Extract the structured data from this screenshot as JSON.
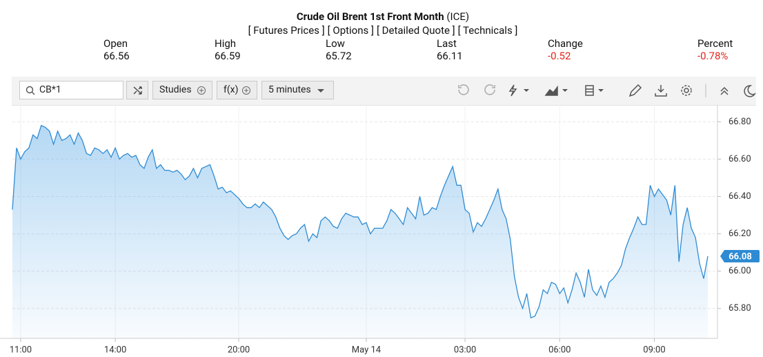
{
  "header": {
    "title": "Crude Oil Brent 1st Front Month",
    "exchange": "(ICE)",
    "links": [
      "[ Futures Prices ]",
      "[ Options ]",
      "[ Detailed Quote ]",
      "[ Technicals ]"
    ]
  },
  "quote": [
    {
      "label": "Open",
      "value": "66.56"
    },
    {
      "label": "High",
      "value": "66.59"
    },
    {
      "label": "Low",
      "value": "65.72"
    },
    {
      "label": "Last",
      "value": "66.11"
    },
    {
      "label": "Change",
      "value": "-0.52"
    },
    {
      "label": "Percent",
      "value": "-0.78%"
    }
  ],
  "toolbar": {
    "symbol": "CB*1",
    "studies": "Studies",
    "functions": "f(x)",
    "interval": "5 minutes"
  },
  "chart_data": {
    "type": "line",
    "color": "#2e8bd3",
    "grid": true,
    "ylim": [
      65.64,
      66.89
    ],
    "yticks": [
      {
        "value": 65.8,
        "label": "65.80"
      },
      {
        "value": 66.0,
        "label": "66.00"
      },
      {
        "value": 66.2,
        "label": "66.20"
      },
      {
        "value": 66.4,
        "label": "66.40"
      },
      {
        "value": 66.6,
        "label": "66.60"
      },
      {
        "value": 66.8,
        "label": "66.80"
      }
    ],
    "categories": [
      null,
      null,
      "11:00",
      null,
      null,
      null,
      null,
      null,
      null,
      null,
      null,
      null,
      null,
      null,
      null,
      null,
      null,
      null,
      null,
      null,
      null,
      null,
      null,
      null,
      null,
      "14:00",
      null,
      null,
      null,
      null,
      null,
      null,
      null,
      null,
      null,
      null,
      null,
      null,
      null,
      null,
      null,
      null,
      null,
      null,
      null,
      null,
      null,
      null,
      null,
      null,
      null,
      null,
      null,
      null,
      null,
      "20:00",
      null,
      null,
      null,
      null,
      null,
      null,
      null,
      null,
      null,
      null,
      null,
      null,
      null,
      null,
      null,
      null,
      null,
      null,
      null,
      null,
      null,
      null,
      null,
      null,
      null,
      null,
      null,
      null,
      null,
      null,
      "May 14",
      null,
      null,
      null,
      null,
      null,
      null,
      null,
      null,
      null,
      null,
      null,
      null,
      null,
      null,
      null,
      null,
      null,
      null,
      null,
      null,
      null,
      null,
      null,
      "03:00",
      null,
      null,
      null,
      null,
      null,
      null,
      null,
      null,
      null,
      null,
      null,
      null,
      null,
      null,
      null,
      null,
      null,
      null,
      null,
      null,
      null,
      null,
      "06:00",
      null,
      null,
      null,
      null,
      null,
      null,
      null,
      null,
      null,
      null,
      null,
      null,
      null,
      null,
      null,
      null,
      null,
      null,
      null,
      null,
      null,
      null,
      "09:00",
      null,
      null,
      null,
      null,
      null,
      null,
      null,
      null,
      null,
      null,
      null,
      null,
      null
    ],
    "values": [
      66.33,
      66.66,
      66.6,
      66.64,
      66.66,
      66.73,
      66.71,
      66.78,
      66.77,
      66.75,
      66.68,
      66.75,
      66.7,
      66.71,
      66.73,
      66.68,
      66.74,
      66.7,
      66.63,
      66.62,
      66.66,
      66.65,
      66.63,
      66.65,
      66.61,
      66.66,
      66.6,
      66.62,
      66.63,
      66.61,
      66.62,
      66.57,
      66.55,
      66.61,
      66.65,
      66.55,
      66.57,
      66.54,
      66.54,
      66.53,
      66.54,
      66.52,
      66.49,
      66.51,
      66.55,
      66.5,
      66.55,
      66.56,
      66.57,
      66.51,
      66.44,
      66.45,
      66.42,
      66.43,
      66.41,
      66.39,
      66.36,
      66.34,
      66.34,
      66.36,
      66.34,
      66.37,
      66.35,
      66.33,
      66.29,
      66.23,
      66.19,
      66.17,
      66.19,
      66.2,
      66.23,
      66.25,
      66.16,
      66.2,
      66.18,
      66.27,
      66.29,
      66.27,
      66.24,
      66.23,
      66.28,
      66.31,
      66.3,
      66.29,
      66.29,
      66.25,
      66.26,
      66.2,
      66.23,
      66.23,
      66.23,
      66.27,
      66.33,
      66.31,
      66.28,
      66.25,
      66.34,
      66.31,
      66.28,
      66.4,
      66.3,
      66.31,
      66.34,
      66.33,
      66.4,
      66.46,
      66.51,
      66.56,
      66.46,
      66.46,
      66.33,
      66.31,
      66.21,
      66.26,
      66.24,
      66.28,
      66.33,
      66.38,
      66.44,
      66.33,
      66.28,
      66.17,
      65.97,
      65.86,
      65.8,
      65.88,
      65.75,
      65.76,
      65.81,
      65.9,
      65.88,
      65.94,
      65.93,
      65.88,
      65.91,
      65.83,
      65.9,
      65.99,
      65.94,
      65.86,
      66.01,
      65.9,
      65.87,
      65.92,
      65.86,
      65.94,
      65.96,
      65.99,
      66.03,
      66.12,
      66.18,
      66.23,
      66.29,
      66.25,
      66.25,
      66.46,
      66.4,
      66.44,
      66.41,
      66.38,
      66.3,
      66.46,
      66.05,
      66.25,
      66.34,
      66.23,
      66.18,
      66.04,
      65.96,
      66.08
    ]
  }
}
